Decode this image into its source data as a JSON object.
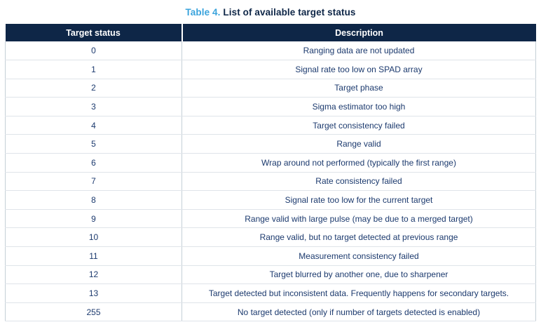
{
  "title": {
    "label": "Table 4.",
    "text": "List of available target status"
  },
  "table": {
    "columns": [
      "Target status",
      "Description"
    ],
    "rows": [
      {
        "status": "0",
        "description": "Ranging data are not updated"
      },
      {
        "status": "1",
        "description": "Signal rate too low on SPAD array"
      },
      {
        "status": "2",
        "description": "Target phase"
      },
      {
        "status": "3",
        "description": "Sigma estimator too high"
      },
      {
        "status": "4",
        "description": "Target consistency failed"
      },
      {
        "status": "5",
        "description": "Range valid"
      },
      {
        "status": "6",
        "description": "Wrap around not performed (typically the first range)"
      },
      {
        "status": "7",
        "description": "Rate consistency failed"
      },
      {
        "status": "8",
        "description": "Signal rate too low for the current target"
      },
      {
        "status": "9",
        "description": "Range valid with large pulse (may be due to a merged target)"
      },
      {
        "status": "10",
        "description": "Range valid, but no target detected at previous range"
      },
      {
        "status": "11",
        "description": "Measurement consistency failed"
      },
      {
        "status": "12",
        "description": "Target blurred by another one, due to sharpener"
      },
      {
        "status": "13",
        "description": "Target detected but inconsistent data. Frequently happens for secondary targets."
      },
      {
        "status": "255",
        "description": "No target detected (only if number of targets detected is enabled)"
      }
    ]
  },
  "colors": {
    "accent_blue": "#3aa3dc",
    "header_bg": "#0e2647",
    "body_text": "#1c3a6e",
    "border_vertical": "#c5cfd7",
    "border_horizontal": "#dfe4e9",
    "page_bg": "#ffffff"
  }
}
